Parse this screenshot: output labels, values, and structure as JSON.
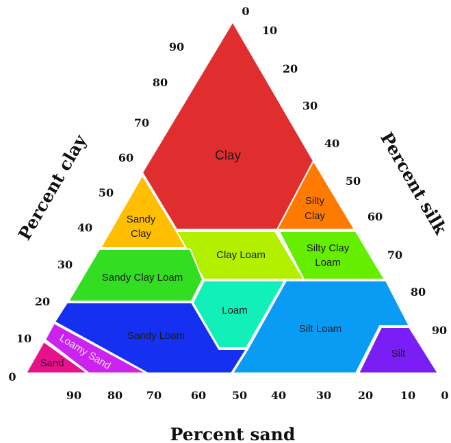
{
  "regions": [
    {
      "id": "clay",
      "label": "Clay",
      "color": "#e02e2e"
    },
    {
      "id": "silty-clay",
      "label": "Silty Clay",
      "color": "#ff7a00"
    },
    {
      "id": "sandy-clay",
      "label": "Sandy Clay",
      "color": "#ffbf00"
    },
    {
      "id": "clay-loam",
      "label": "Clay Loam",
      "color": "#b3f000"
    },
    {
      "id": "silty-clay-loam",
      "label": "Silty Clay Loam",
      "color": "#66ee00"
    },
    {
      "id": "sandy-clay-loam",
      "label": "Sandy Clay Loam",
      "color": "#33dd22"
    },
    {
      "id": "loam",
      "label": "Loam",
      "color": "#11f0b8"
    },
    {
      "id": "sandy-loam",
      "label": "Sandy Loam",
      "color": "#1530f0"
    },
    {
      "id": "silt-loam",
      "label": "Silt Loam",
      "color": "#0a9cf5"
    },
    {
      "id": "silt",
      "label": "Silt",
      "color": "#7a1ef5"
    },
    {
      "id": "loamy-sand",
      "label": "Loamy Sand",
      "color": "#cc22ee"
    },
    {
      "id": "sand",
      "label": "Sand",
      "color": "#e8118c"
    }
  ],
  "axes": {
    "clay": {
      "title": "Percent clay",
      "ticks": [
        "0",
        "10",
        "20",
        "30",
        "40",
        "50",
        "60",
        "70",
        "80",
        "90"
      ]
    },
    "silt": {
      "title": "Percent silk",
      "ticks": [
        "0",
        "10",
        "20",
        "30",
        "40",
        "50",
        "60",
        "70",
        "80",
        "90"
      ]
    },
    "sand": {
      "title": "Percent sand",
      "ticks": [
        "90",
        "80",
        "70",
        "60",
        "50",
        "40",
        "30",
        "20",
        "10",
        "0"
      ]
    }
  },
  "top_label": "0",
  "right_corner_label": "0"
}
